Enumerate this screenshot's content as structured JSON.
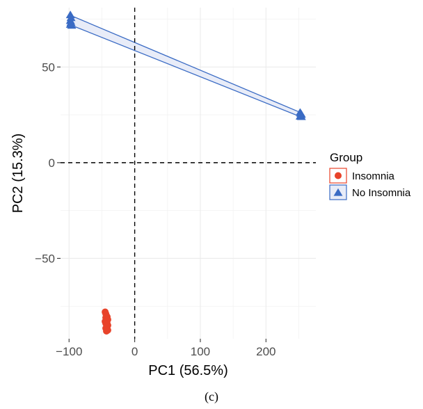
{
  "chart_data": {
    "type": "scatter",
    "title": "",
    "xlabel": "PC1 (56.5%)",
    "ylabel": "PC2 (15.3%)",
    "xlim": [
      -113,
      276
    ],
    "ylim": [
      -92,
      81
    ],
    "x_ticks": [
      -100,
      0,
      100,
      200
    ],
    "x_tick_labels": [
      "−100",
      "0",
      "100",
      "200"
    ],
    "y_ticks": [
      -50,
      0,
      50
    ],
    "y_tick_labels": [
      "−50",
      "0",
      "50"
    ],
    "reference_lines": {
      "x": 0,
      "y": 0,
      "style": "dashed"
    },
    "grid": true,
    "legend": {
      "title": "Group",
      "position": "right",
      "entries": [
        "Insomnia",
        "No Insomnia"
      ]
    },
    "series": [
      {
        "name": "Insomnia",
        "marker": "circle",
        "color": "#e8432a",
        "x": [
          -45,
          -44,
          -43,
          -42,
          -44,
          -43,
          -42,
          -41,
          -45,
          -43,
          -42,
          -44,
          -43,
          -41,
          -42,
          -43,
          -44,
          -42,
          -41,
          -43
        ],
        "y": [
          -78,
          -79,
          -80,
          -80.5,
          -81,
          -81.5,
          -82,
          -82,
          -83,
          -83.5,
          -84,
          -84,
          -84.5,
          -85,
          -85.5,
          -86,
          -86.5,
          -87,
          -87.5,
          -88
        ],
        "hull": [
          [
            -45,
            -78
          ],
          [
            -41,
            -80.5
          ],
          [
            -41,
            -87.5
          ],
          [
            -43,
            -88
          ],
          [
            -45,
            -83
          ]
        ]
      },
      {
        "name": "No Insomnia",
        "marker": "triangle",
        "color": "#3a6bc4",
        "fill": "#e8ecf8",
        "x": [
          -98,
          -97,
          -98,
          -97,
          -98,
          -96,
          252,
          253,
          254,
          253,
          252,
          254
        ],
        "y": [
          77,
          75.5,
          74,
          73,
          72,
          71.5,
          26,
          25.5,
          25,
          24.5,
          24,
          23.8
        ],
        "hull": [
          [
            -98,
            77
          ],
          [
            254,
            26
          ],
          [
            254,
            23.8
          ],
          [
            -98,
            72
          ]
        ]
      }
    ]
  },
  "caption": "(c)"
}
